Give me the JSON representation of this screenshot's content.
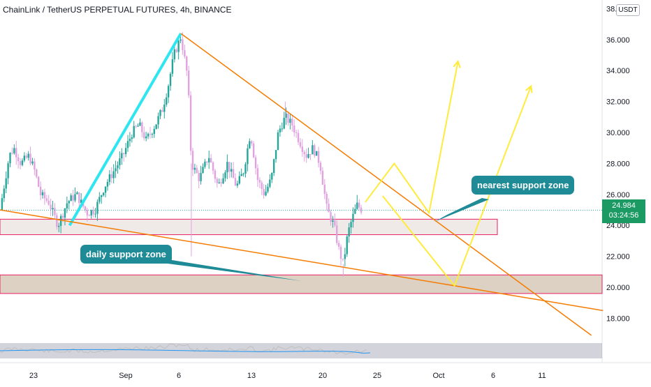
{
  "header": {
    "title": "ChainLink / TetherUS PERPETUAL FUTURES, 4h, BINANCE"
  },
  "price_axis": {
    "currency": "USDT",
    "ticks": [
      "38.000",
      "36.000",
      "34.000",
      "32.000",
      "30.000",
      "28.000",
      "26.000",
      "24.000",
      "22.000",
      "20.000",
      "18.000"
    ],
    "last_price": "24.984",
    "countdown": "03:24:56"
  },
  "time_axis": {
    "ticks": [
      "23",
      "Sep",
      "6",
      "13",
      "20",
      "25",
      "Oct",
      "6",
      "11"
    ]
  },
  "annotations": {
    "nearest_support": "nearest support zone",
    "daily_support": "daily support zone"
  },
  "colors": {
    "up_candle": "#26a69a",
    "down_candle": "#e0a3e0",
    "impulse_line": "#2ee6f0",
    "trend_line": "#f57c00",
    "projection": "#ffeb3b",
    "callout_bg": "#1e8b96",
    "zone_border": "#e91e63",
    "rsi_line": "#c0c0c0",
    "rsi_ma": "#2196f3"
  },
  "chart_data": {
    "type": "candlestick",
    "interval": "4h",
    "ylim": [
      16.5,
      38.2
    ],
    "y_ticks": [
      18,
      20,
      22,
      24,
      26,
      28,
      30,
      32,
      34,
      36,
      38
    ],
    "x_ticks": [
      "23",
      "Sep",
      "6",
      "13",
      "20",
      "25",
      "Oct",
      "6",
      "11"
    ],
    "price_path": [
      [
        0,
        25.0
      ],
      [
        0.08,
        28.5
      ],
      [
        0.12,
        29.0
      ],
      [
        0.18,
        28.0
      ],
      [
        0.25,
        28.5
      ],
      [
        0.3,
        27.5
      ],
      [
        0.35,
        26.0
      ],
      [
        0.42,
        25.5
      ],
      [
        0.5,
        24.0
      ],
      [
        0.58,
        25.5
      ],
      [
        0.66,
        26.0
      ],
      [
        0.75,
        24.8
      ],
      [
        0.82,
        25.0
      ],
      [
        0.9,
        26.5
      ],
      [
        0.98,
        27.5
      ],
      [
        1.06,
        28.5
      ],
      [
        1.14,
        30.0
      ],
      [
        1.2,
        30.5
      ],
      [
        1.26,
        29.5
      ],
      [
        1.34,
        30.5
      ],
      [
        1.4,
        31.5
      ],
      [
        1.45,
        33.0
      ],
      [
        1.5,
        35.0
      ],
      [
        1.56,
        36.2
      ],
      [
        1.62,
        33.5
      ],
      [
        1.65,
        28.0
      ],
      [
        1.72,
        27.0
      ],
      [
        1.8,
        28.5
      ],
      [
        1.88,
        26.5
      ],
      [
        1.96,
        28.0
      ],
      [
        2.04,
        26.5
      ],
      [
        2.1,
        27.5
      ],
      [
        2.16,
        30.0
      ],
      [
        2.22,
        27.0
      ],
      [
        2.28,
        26.0
      ],
      [
        2.34,
        27.0
      ],
      [
        2.4,
        30.0
      ],
      [
        2.46,
        31.0
      ],
      [
        2.52,
        30.5
      ],
      [
        2.58,
        29.5
      ],
      [
        2.64,
        28.5
      ],
      [
        2.7,
        29.0
      ],
      [
        2.76,
        28.0
      ],
      [
        2.82,
        25.0
      ],
      [
        2.88,
        24.0
      ],
      [
        2.92,
        22.5
      ],
      [
        2.96,
        21.5
      ],
      [
        3.0,
        23.5
      ],
      [
        3.04,
        24.5
      ],
      [
        3.08,
        25.3
      ],
      [
        3.12,
        25.0
      ]
    ],
    "wicks": [
      {
        "x": 1.56,
        "high": 36.4
      },
      {
        "x": 1.65,
        "low": 22.0
      },
      {
        "x": 2.46,
        "high": 32.0
      },
      {
        "x": 2.96,
        "low": 20.7
      }
    ],
    "last_price": 24.984,
    "zones": [
      {
        "name": "nearest support zone",
        "low": 23.4,
        "high": 24.4,
        "x_end": 4.2
      },
      {
        "name": "daily support zone",
        "low": 19.6,
        "high": 20.8,
        "x_end": 5.2
      }
    ],
    "lines": [
      {
        "kind": "impulse",
        "from": [
          0.6,
          24.0
        ],
        "to": [
          1.56,
          36.4
        ]
      },
      {
        "kind": "downtrend",
        "from": [
          1.56,
          36.4
        ],
        "to": [
          5.1,
          16.9
        ]
      },
      {
        "kind": "support-trend",
        "from": [
          0,
          25.0
        ],
        "to": [
          5.2,
          18.5
        ]
      }
    ],
    "projections": [
      {
        "points": [
          [
            3.15,
            25.5
          ],
          [
            3.4,
            28.0
          ],
          [
            3.7,
            24.8
          ],
          [
            3.95,
            34.6
          ]
        ]
      },
      {
        "points": [
          [
            3.3,
            25.9
          ],
          [
            3.92,
            20.1
          ],
          [
            4.58,
            33.0
          ]
        ]
      }
    ],
    "rsi": {
      "ma_level": 48
    }
  }
}
